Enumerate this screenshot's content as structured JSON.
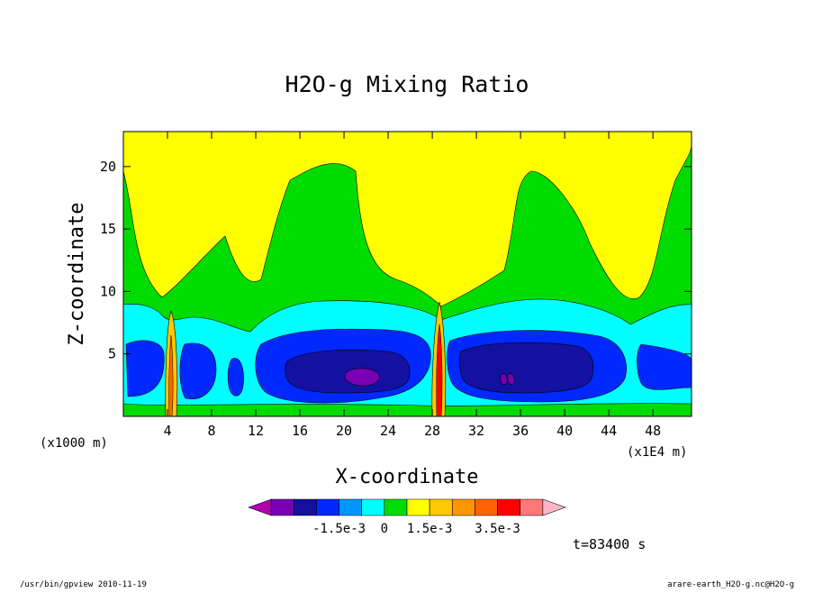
{
  "chart_data": {
    "type": "heatmap",
    "title": "H2O-g Mixing Ratio",
    "xlabel": "X-coordinate",
    "ylabel": "Z-coordinate",
    "x_unit_left": "(x1000 m)",
    "x_unit_right": "(x1E4 m)",
    "xlim": [
      0,
      51.5
    ],
    "ylim": [
      0,
      22.8
    ],
    "x_ticks": [
      4,
      8,
      12,
      16,
      20,
      24,
      28,
      32,
      36,
      40,
      44,
      48
    ],
    "x_tick_labels": [
      "4",
      "8",
      "12",
      "16",
      "20",
      "24",
      "28",
      "32",
      "36",
      "40",
      "44",
      "48"
    ],
    "y_ticks": [
      5,
      10,
      15,
      20
    ],
    "y_tick_labels": [
      "5",
      "10",
      "15",
      "20"
    ],
    "colorbar": {
      "colors": [
        "#b000b0",
        "#7800b4",
        "#1410a0",
        "#0028ff",
        "#0096ff",
        "#00ffff",
        "#00dc00",
        "#ffff00",
        "#ffc800",
        "#ff9600",
        "#ff6400",
        "#ff0000",
        "#ff7878",
        "#ffb4c8"
      ],
      "tick_labels": [
        "-1.5e-3",
        "0",
        "1.5e-3",
        "3.5e-3"
      ],
      "tick_positions": [
        4,
        6,
        8,
        11
      ]
    },
    "regions": [
      {
        "name": "upper",
        "color": "#ffff00"
      },
      {
        "name": "middle",
        "color": "#00dc00"
      },
      {
        "name": "lower-cyan",
        "color": "#00ffff"
      },
      {
        "name": "blue",
        "color": "#0028ff"
      },
      {
        "name": "dark-blue",
        "color": "#1410a0"
      },
      {
        "name": "core",
        "color": "#7800b4"
      }
    ]
  },
  "time_label": "t=83400 s",
  "footer_left": "/usr/bin/gpview  2010-11-19",
  "footer_right": "arare-earth_H2O-g.nc@H2O-g"
}
